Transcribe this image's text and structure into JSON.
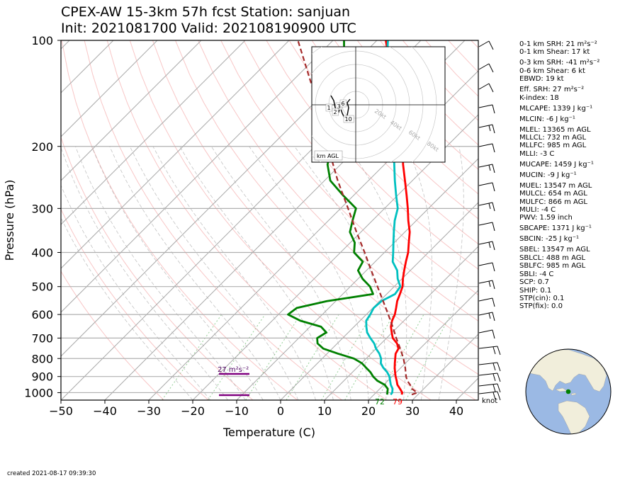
{
  "header": {
    "title_line1": "CPEX-AW 15-3km  57h fcst  Station: sanjuan",
    "title_line2": "Init: 2021081700  Valid: 202108190900 UTC"
  },
  "chart_data": {
    "type": "line",
    "xlabel": "Temperature (C)",
    "ylabel": "Pressure (hPa)",
    "xlim": [
      -50,
      45
    ],
    "ylim": [
      1050,
      100
    ],
    "y_scale": "log",
    "skew": true,
    "x_ticks": [
      -50,
      -40,
      -30,
      -20,
      -10,
      0,
      10,
      20,
      30,
      40
    ],
    "x_tick_labels": [
      "−50",
      "−40",
      "−30",
      "−20",
      "−10",
      "0",
      "10",
      "20",
      "30",
      "40"
    ],
    "y_ticks": [
      100,
      200,
      300,
      400,
      500,
      600,
      700,
      800,
      900,
      1000
    ],
    "y_tick_labels": [
      "100",
      "200",
      "300",
      "400",
      "500",
      "600",
      "700",
      "800",
      "900",
      "1000"
    ],
    "grid": true,
    "series": [
      {
        "color": "#ff0000",
        "points": [
          [
            1013,
            26.3
          ],
          [
            1000,
            26.0
          ],
          [
            975,
            24.6
          ],
          [
            950,
            23.1
          ],
          [
            925,
            22.0
          ],
          [
            900,
            20.8
          ],
          [
            875,
            19.7
          ],
          [
            850,
            18.6
          ],
          [
            825,
            17.6
          ],
          [
            800,
            16.6
          ],
          [
            775,
            15.6
          ],
          [
            750,
            15.1
          ],
          [
            725,
            13.6
          ],
          [
            700,
            11.4
          ],
          [
            675,
            9.9
          ],
          [
            650,
            8.4
          ],
          [
            625,
            7.3
          ],
          [
            600,
            6.5
          ],
          [
            575,
            5.3
          ],
          [
            550,
            4.0
          ],
          [
            525,
            3.0
          ],
          [
            500,
            1.9
          ],
          [
            475,
            0.2
          ],
          [
            450,
            -1.4
          ],
          [
            425,
            -3.0
          ],
          [
            400,
            -4.6
          ],
          [
            375,
            -6.7
          ],
          [
            350,
            -8.9
          ],
          [
            325,
            -11.8
          ],
          [
            300,
            -14.7
          ],
          [
            275,
            -18.0
          ],
          [
            250,
            -21.7
          ],
          [
            225,
            -25.8
          ],
          [
            200,
            -30.0
          ],
          [
            175,
            -35.1
          ],
          [
            150,
            -40.8
          ],
          [
            125,
            -49.0
          ],
          [
            100,
            -58.0
          ]
        ]
      },
      {
        "color": "#00c0c0",
        "points": [
          [
            1013,
            23.8
          ],
          [
            1000,
            23.7
          ],
          [
            975,
            22.9
          ],
          [
            950,
            21.6
          ],
          [
            925,
            20.5
          ],
          [
            900,
            19.4
          ],
          [
            875,
            17.9
          ],
          [
            850,
            16.0
          ],
          [
            825,
            14.4
          ],
          [
            800,
            13.4
          ],
          [
            775,
            11.9
          ],
          [
            750,
            10.0
          ],
          [
            725,
            8.4
          ],
          [
            700,
            6.3
          ],
          [
            675,
            4.3
          ],
          [
            650,
            2.8
          ],
          [
            625,
            1.4
          ],
          [
            600,
            0.9
          ],
          [
            575,
            0.2
          ],
          [
            550,
            0.4
          ],
          [
            525,
            1.9
          ],
          [
            500,
            1.4
          ],
          [
            475,
            -1.0
          ],
          [
            450,
            -3.0
          ],
          [
            425,
            -6.0
          ],
          [
            400,
            -8.0
          ],
          [
            375,
            -10.2
          ],
          [
            350,
            -12.5
          ],
          [
            325,
            -14.9
          ],
          [
            300,
            -17.0
          ],
          [
            275,
            -20.4
          ],
          [
            250,
            -24.0
          ],
          [
            225,
            -27.8
          ],
          [
            200,
            -32.0
          ],
          [
            175,
            -37.0
          ],
          [
            150,
            -42.5
          ],
          [
            125,
            -50.2
          ],
          [
            100,
            -57.5
          ]
        ]
      },
      {
        "color": "#008000",
        "points": [
          [
            1013,
            23.0
          ],
          [
            1000,
            22.6
          ],
          [
            975,
            21.8
          ],
          [
            950,
            20.2
          ],
          [
            925,
            17.6
          ],
          [
            900,
            15.7
          ],
          [
            875,
            14.1
          ],
          [
            850,
            12.1
          ],
          [
            825,
            10.1
          ],
          [
            800,
            7.2
          ],
          [
            775,
            2.5
          ],
          [
            750,
            -2.0
          ],
          [
            725,
            -4.5
          ],
          [
            700,
            -5.8
          ],
          [
            675,
            -5.0
          ],
          [
            650,
            -7.5
          ],
          [
            625,
            -13.6
          ],
          [
            600,
            -17.8
          ],
          [
            575,
            -17.3
          ],
          [
            550,
            -12.0
          ],
          [
            525,
            -3.1
          ],
          [
            500,
            -5.5
          ],
          [
            475,
            -9.0
          ],
          [
            450,
            -11.9
          ],
          [
            425,
            -12.8
          ],
          [
            400,
            -16.9
          ],
          [
            375,
            -19.0
          ],
          [
            350,
            -22.5
          ],
          [
            325,
            -24.5
          ],
          [
            300,
            -26.5
          ],
          [
            275,
            -32.5
          ],
          [
            250,
            -38.7
          ],
          [
            225,
            -43.0
          ],
          [
            200,
            -46.0
          ],
          [
            175,
            -51.8
          ],
          [
            150,
            -55.9
          ],
          [
            125,
            -59.7
          ],
          [
            100,
            -67.5
          ]
        ]
      },
      {
        "color": "#a52a2a",
        "dashed": true,
        "points": [
          [
            1013,
            28.6
          ],
          [
            1000,
            29.4
          ],
          [
            975,
            27.3
          ],
          [
            950,
            26.0
          ],
          [
            925,
            24.4
          ],
          [
            900,
            23.2
          ],
          [
            850,
            21.0
          ],
          [
            800,
            18.5
          ],
          [
            750,
            15.5
          ],
          [
            700,
            12.2
          ],
          [
            650,
            8.8
          ],
          [
            600,
            5.0
          ],
          [
            550,
            0.8
          ],
          [
            500,
            -3.8
          ],
          [
            450,
            -8.9
          ],
          [
            400,
            -14.5
          ],
          [
            350,
            -21.0
          ],
          [
            300,
            -28.3
          ],
          [
            250,
            -37.0
          ],
          [
            200,
            -47.0
          ],
          [
            150,
            -59.5
          ],
          [
            100,
            -78.0
          ]
        ]
      }
    ],
    "annotations": {
      "surface_temp_label": "79",
      "surface_dewpoint_label": "72",
      "srh_label": "27 m²s⁻²",
      "knot_label": "knot",
      "hodograph_labels": [
        "1",
        "3",
        "6",
        "2",
        "10"
      ],
      "hodograph_ring_labels": [
        "20kt",
        "40kt",
        "60kt",
        "80kt"
      ],
      "hodograph_caption": "km AGL"
    }
  },
  "stats": [
    {
      "text": "0-1 km SRH: 21 m²s⁻²",
      "gap": false
    },
    {
      "text": "0-1 km Shear: 17 kt",
      "gap": false
    },
    {
      "text": "0-3 km SRH: -41 m²s⁻²",
      "gap": true
    },
    {
      "text": "0-6 km Shear: 6 kt",
      "gap": false
    },
    {
      "text": "EBWD: 19 kt",
      "gap": false
    },
    {
      "text": "Eff. SRH: 27 m²s⁻²",
      "gap": true
    },
    {
      "text": "K-index: 18",
      "gap": false
    },
    {
      "text": "MLCAPE: 1339 J kg⁻¹",
      "gap": true
    },
    {
      "text": "MLCIN: -6 J kg⁻¹",
      "gap": true
    },
    {
      "text": "MLEL: 13365 m AGL",
      "gap": true
    },
    {
      "text": "MLLCL: 732 m AGL",
      "gap": false
    },
    {
      "text": "MLLFC: 985 m AGL",
      "gap": false
    },
    {
      "text": "MLLI: -3 C",
      "gap": false
    },
    {
      "text": "MUCAPE: 1459 J kg⁻¹",
      "gap": true
    },
    {
      "text": "MUCIN: -9 J kg⁻¹",
      "gap": true
    },
    {
      "text": "MUEL: 13547 m AGL",
      "gap": true
    },
    {
      "text": "MULCL: 654 m AGL",
      "gap": false
    },
    {
      "text": "MULFC: 866 m AGL",
      "gap": false
    },
    {
      "text": "MULI: -4 C",
      "gap": false
    },
    {
      "text": "PWV: 1.59 inch",
      "gap": false
    },
    {
      "text": "SBCAPE: 1371 J kg⁻¹",
      "gap": true
    },
    {
      "text": "SBCIN: -25 J kg⁻¹",
      "gap": true
    },
    {
      "text": "SBEL: 13547 m AGL",
      "gap": true
    },
    {
      "text": "SBLCL: 488 m AGL",
      "gap": false
    },
    {
      "text": "SBLFC: 985 m AGL",
      "gap": false
    },
    {
      "text": "SBLI: -4 C",
      "gap": false
    },
    {
      "text": "SCP: 0.7",
      "gap": false
    },
    {
      "text": "SHIP: 0.1",
      "gap": false
    },
    {
      "text": "STP(cin): 0.1",
      "gap": false
    },
    {
      "text": "STP(fix): 0.0",
      "gap": false
    }
  ],
  "footer": {
    "created": "created 2021-08-17 09:39:30"
  },
  "colors": {
    "ocean": "#9bb9e4",
    "land": "#f1eedb",
    "station": "#008000",
    "grid": "#b0b0b0"
  }
}
